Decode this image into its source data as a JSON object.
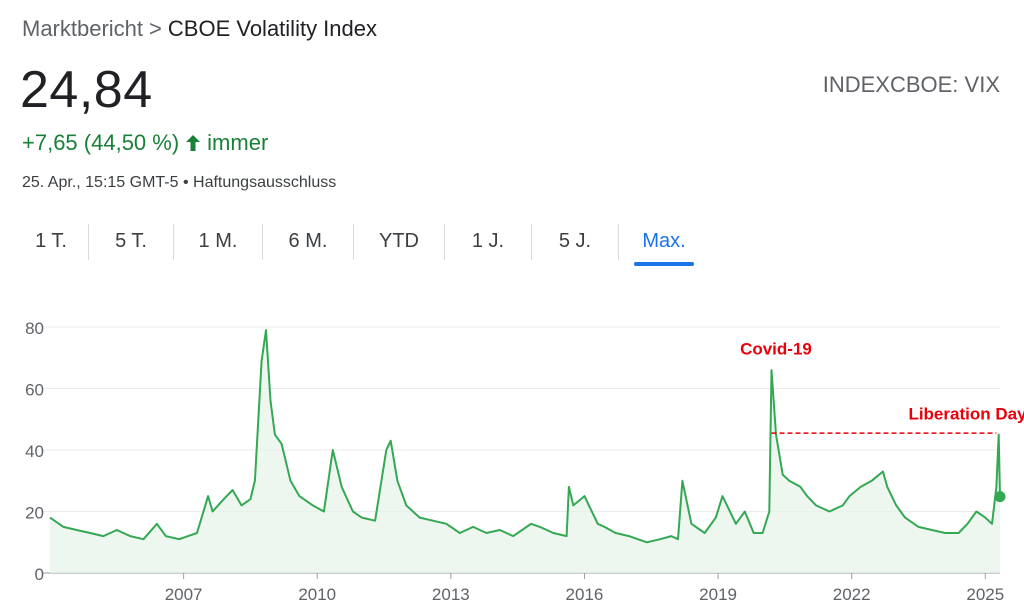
{
  "breadcrumb": {
    "parent": "Marktbericht",
    "separator": ">",
    "current": "CBOE Volatility Index"
  },
  "quote": {
    "price": "24,84",
    "ticker": "INDEXCBOE: VIX",
    "change": "+7,65 (44,50 %)",
    "period": "immer",
    "meta": "25. Apr., 15:15 GMT-5 • Haftungsausschluss"
  },
  "colors": {
    "line": "#34a853",
    "fill": "#e6f4ea",
    "positive": "#188038",
    "annotation": "#e8000b",
    "accent": "#1a73e8",
    "grid": "#ebebeb",
    "axis": "#5f6368"
  },
  "tabs": [
    {
      "label": "1 T.",
      "active": false
    },
    {
      "label": "5 T.",
      "active": false
    },
    {
      "label": "1 M.",
      "active": false
    },
    {
      "label": "6 M.",
      "active": false
    },
    {
      "label": "YTD",
      "active": false
    },
    {
      "label": "1 J.",
      "active": false
    },
    {
      "label": "5 J.",
      "active": false
    },
    {
      "label": "Max.",
      "active": true
    }
  ],
  "chart_data": {
    "type": "line",
    "title": "CBOE Volatility Index",
    "xlim": [
      2004.0,
      2025.33
    ],
    "ylim": [
      0,
      80
    ],
    "yticks": [
      0,
      20,
      40,
      60,
      80
    ],
    "xticks": [
      {
        "value": 2007,
        "label": "2007"
      },
      {
        "value": 2010,
        "label": "2010"
      },
      {
        "value": 2013,
        "label": "2013"
      },
      {
        "value": 2016,
        "label": "2016"
      },
      {
        "value": 2019,
        "label": "2019"
      },
      {
        "value": 2022,
        "label": "2022"
      },
      {
        "value": 2025,
        "label": "2025"
      }
    ],
    "grid": true,
    "series": [
      {
        "name": "VIX",
        "x": [
          2004.0,
          2004.3,
          2004.6,
          2004.9,
          2005.2,
          2005.5,
          2005.8,
          2006.1,
          2006.4,
          2006.6,
          2006.9,
          2007.1,
          2007.3,
          2007.55,
          2007.65,
          2007.9,
          2008.1,
          2008.3,
          2008.5,
          2008.6,
          2008.75,
          2008.85,
          2008.95,
          2009.05,
          2009.2,
          2009.4,
          2009.6,
          2009.9,
          2010.15,
          2010.35,
          2010.55,
          2010.8,
          2011.0,
          2011.3,
          2011.55,
          2011.65,
          2011.8,
          2012.0,
          2012.3,
          2012.6,
          2012.9,
          2013.2,
          2013.5,
          2013.8,
          2014.1,
          2014.4,
          2014.6,
          2014.8,
          2015.0,
          2015.3,
          2015.6,
          2015.65,
          2015.75,
          2016.0,
          2016.1,
          2016.3,
          2016.45,
          2016.7,
          2017.0,
          2017.4,
          2017.7,
          2017.95,
          2018.1,
          2018.2,
          2018.4,
          2018.7,
          2018.95,
          2019.1,
          2019.4,
          2019.6,
          2019.8,
          2020.0,
          2020.15,
          2020.2,
          2020.3,
          2020.45,
          2020.6,
          2020.85,
          2021.0,
          2021.2,
          2021.5,
          2021.8,
          2021.95,
          2022.2,
          2022.45,
          2022.7,
          2022.8,
          2023.0,
          2023.2,
          2023.5,
          2023.8,
          2024.1,
          2024.4,
          2024.6,
          2024.8,
          2025.0,
          2025.15,
          2025.25,
          2025.3,
          2025.33
        ],
        "values": [
          18,
          15,
          14,
          13,
          12,
          14,
          12,
          11,
          16,
          12,
          11,
          12,
          13,
          25,
          20,
          24,
          27,
          22,
          24,
          30,
          69,
          79,
          56,
          45,
          42,
          30,
          25,
          22,
          20,
          40,
          28,
          20,
          18,
          17,
          40,
          43,
          30,
          22,
          18,
          17,
          16,
          13,
          15,
          13,
          14,
          12,
          14,
          16,
          15,
          13,
          12,
          28,
          22,
          25,
          22,
          16,
          15,
          13,
          12,
          10,
          11,
          12,
          11,
          30,
          16,
          13,
          18,
          25,
          16,
          20,
          13,
          13,
          20,
          66,
          45,
          32,
          30,
          28,
          25,
          22,
          20,
          22,
          25,
          28,
          30,
          33,
          28,
          22,
          18,
          15,
          14,
          13,
          13,
          16,
          20,
          18,
          16,
          28,
          45,
          24.84
        ]
      }
    ],
    "annotations": [
      {
        "label": "Covid-19",
        "x": 2020.3,
        "y": 71
      },
      {
        "label": "Liberation Day",
        "x": 2024.6,
        "y": 50,
        "line_from_x": 2020.2,
        "line_to_x": 2025.25,
        "line_y": 45.5
      }
    ],
    "last_point": {
      "x": 2025.33,
      "y": 24.84
    }
  }
}
